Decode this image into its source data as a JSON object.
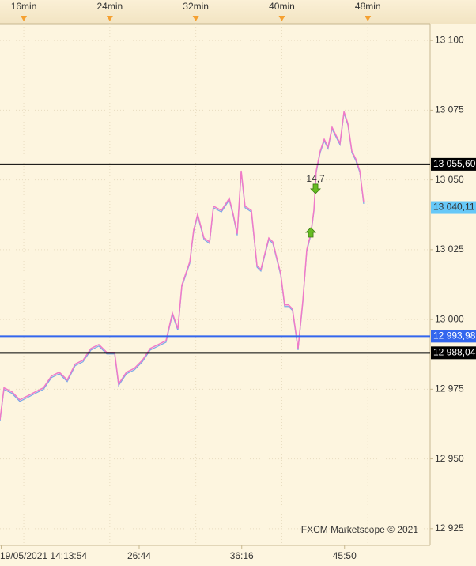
{
  "chart_data": {
    "type": "line",
    "watermark": "FXCM Marketscope © 2021",
    "xlim": [
      13.79,
      53.79
    ],
    "ylim": [
      12919,
      13106
    ],
    "xticks": [
      {
        "value": 16,
        "label": "16min"
      },
      {
        "value": 24,
        "label": "24min"
      },
      {
        "value": 32,
        "label": "32min"
      },
      {
        "value": 40,
        "label": "40min"
      },
      {
        "value": 48,
        "label": "48min"
      }
    ],
    "x2ticks": [
      {
        "value": 13.9,
        "label": "19/05/2021 14:13:54"
      },
      {
        "value": 26.73,
        "label": "26:44"
      },
      {
        "value": 36.27,
        "label": "36:16"
      },
      {
        "value": 45.83,
        "label": "45:50"
      }
    ],
    "yticks": [
      {
        "value": 12925,
        "label": "12 925"
      },
      {
        "value": 12950,
        "label": "12 950"
      },
      {
        "value": 12975,
        "label": "12 975"
      },
      {
        "value": 13000,
        "label": "13 000"
      },
      {
        "value": 13025,
        "label": "13 025"
      },
      {
        "value": 13050,
        "label": "13 050"
      },
      {
        "value": 13075,
        "label": "13 075"
      },
      {
        "value": 13100,
        "label": "13 100"
      }
    ],
    "grid": true,
    "series": [
      {
        "color": "#f07ac8",
        "x": [
          13.79,
          14.16,
          14.89,
          15.63,
          16.36,
          17.1,
          17.83,
          18.57,
          19.3,
          20.04,
          20.78,
          21.51,
          22.25,
          22.98,
          23.72,
          24.45,
          24.82,
          25.55,
          26.29,
          27.03,
          27.76,
          28.5,
          29.23,
          29.82,
          30.33,
          30.7,
          31.44,
          31.8,
          32.17,
          32.76,
          33.28,
          33.64,
          34.38,
          35.11,
          35.48,
          35.85,
          36.22,
          36.58,
          37.17,
          37.69,
          38.05,
          38.42,
          38.79,
          39.16,
          39.52,
          39.89,
          40.26,
          40.63,
          40.99,
          41.51,
          41.95,
          42.32,
          42.69,
          42.98,
          43.2,
          43.57,
          43.94,
          44.3,
          44.67,
          45.04,
          45.41,
          45.78,
          46.14,
          46.51,
          46.88,
          47.25,
          47.61
        ],
        "values": [
          12964.1,
          12975.5,
          12974.1,
          12971.2,
          12972.6,
          12974.1,
          12975.5,
          12979.7,
          12981.1,
          12978.3,
          12984.0,
          12985.4,
          12989.6,
          12991.0,
          12988.2,
          12988.2,
          12976.9,
          12981.1,
          12982.5,
          12985.4,
          12989.6,
          12991.0,
          12992.4,
          13002.3,
          12996.7,
          13012.3,
          13020.7,
          13032.1,
          13037.7,
          13029.2,
          13027.8,
          13040.6,
          13039.1,
          13043.4,
          13037.7,
          13030.7,
          13053.3,
          13040.6,
          13039.1,
          13019.3,
          13017.9,
          13023.6,
          13029.2,
          13027.8,
          13022.2,
          13016.5,
          13005.2,
          13005.2,
          13003.8,
          12989.6,
          13006.6,
          13025.0,
          13030.7,
          13039.1,
          13053.3,
          13060.4,
          13064.6,
          13061.8,
          13068.9,
          13066.0,
          13063.2,
          13074.5,
          13070.3,
          13060.4,
          13057.5,
          13053.3,
          13042.0
        ]
      }
    ],
    "levels": [
      {
        "value": 13055.6,
        "label": "13 055,60",
        "color": "#000000"
      },
      {
        "value": 12993.98,
        "label": "12 993,98",
        "color": "#3366ee"
      },
      {
        "value": 12988.04,
        "label": "12 988,04",
        "color": "#000000"
      }
    ],
    "current_price": {
      "value": 13040.11,
      "label": "13 040,11",
      "color": "#66c8f8"
    },
    "signals": [
      {
        "direction": "buy",
        "x": 42.69,
        "y": 13031.2,
        "color": "#66bb22"
      },
      {
        "direction": "sell",
        "x": 43.13,
        "y": 13046.8,
        "color": "#66bb22",
        "label": "14,7"
      }
    ]
  }
}
